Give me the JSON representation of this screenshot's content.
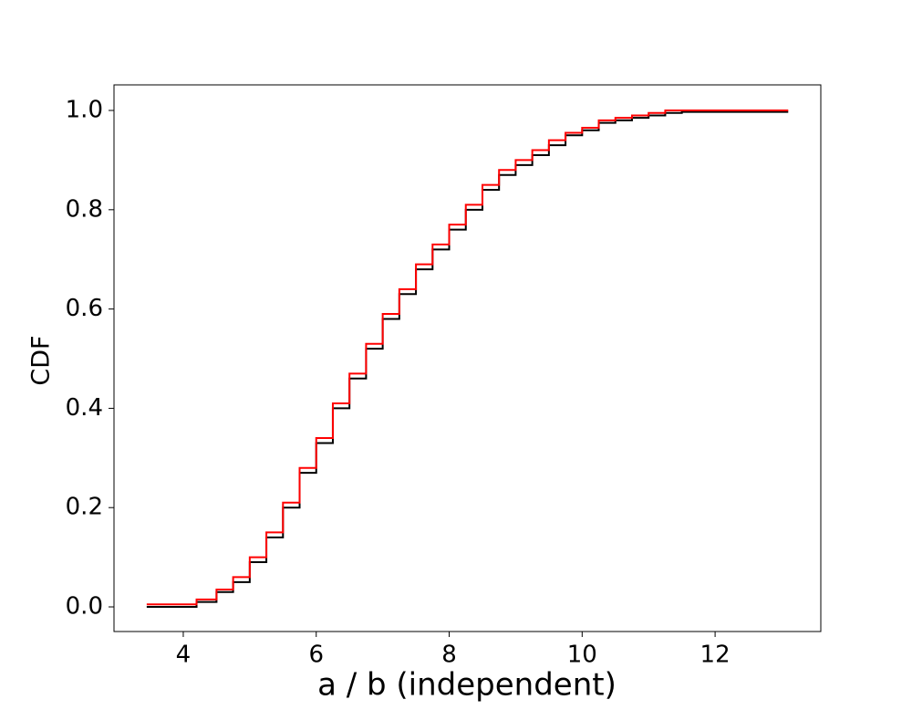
{
  "chart_data": {
    "type": "step",
    "x_label": "a / b (independent)",
    "y_label": "CDF",
    "x": [
      3.45,
      4.2,
      4.5,
      4.75,
      5.0,
      5.25,
      5.5,
      5.75,
      6.0,
      6.25,
      6.5,
      6.75,
      7.0,
      7.25,
      7.5,
      7.75,
      8.0,
      8.25,
      8.5,
      8.75,
      9.0,
      9.25,
      9.5,
      9.75,
      10.0,
      10.25,
      10.5,
      10.75,
      11.0,
      11.25,
      11.5,
      13.1
    ],
    "series": [
      {
        "color": "#000000",
        "values": [
          0,
          0.01,
          0.03,
          0.05,
          0.09,
          0.14,
          0.2,
          0.27,
          0.33,
          0.4,
          0.46,
          0.52,
          0.58,
          0.63,
          0.68,
          0.72,
          0.76,
          0.8,
          0.84,
          0.87,
          0.89,
          0.91,
          0.93,
          0.95,
          0.96,
          0.975,
          0.98,
          0.985,
          0.99,
          0.995,
          0.997,
          0.997
        ]
      },
      {
        "color": "#ff0000",
        "values": [
          0.005,
          0.015,
          0.035,
          0.06,
          0.1,
          0.15,
          0.21,
          0.28,
          0.34,
          0.41,
          0.47,
          0.53,
          0.59,
          0.64,
          0.69,
          0.73,
          0.77,
          0.81,
          0.85,
          0.88,
          0.9,
          0.92,
          0.94,
          0.955,
          0.965,
          0.98,
          0.985,
          0.99,
          0.995,
          1.0,
          1.0,
          1.0
        ]
      }
    ],
    "xlim": [
      2.958,
      13.59
    ],
    "ylim": [
      -0.0496,
      1.0515
    ],
    "xticks": [
      4,
      6,
      8,
      10,
      12
    ],
    "yticks": [
      {
        "value": 0,
        "label": "0.0"
      },
      0.2,
      0.4,
      0.6,
      0.8,
      {
        "value": 1,
        "label": "1.0"
      }
    ]
  }
}
